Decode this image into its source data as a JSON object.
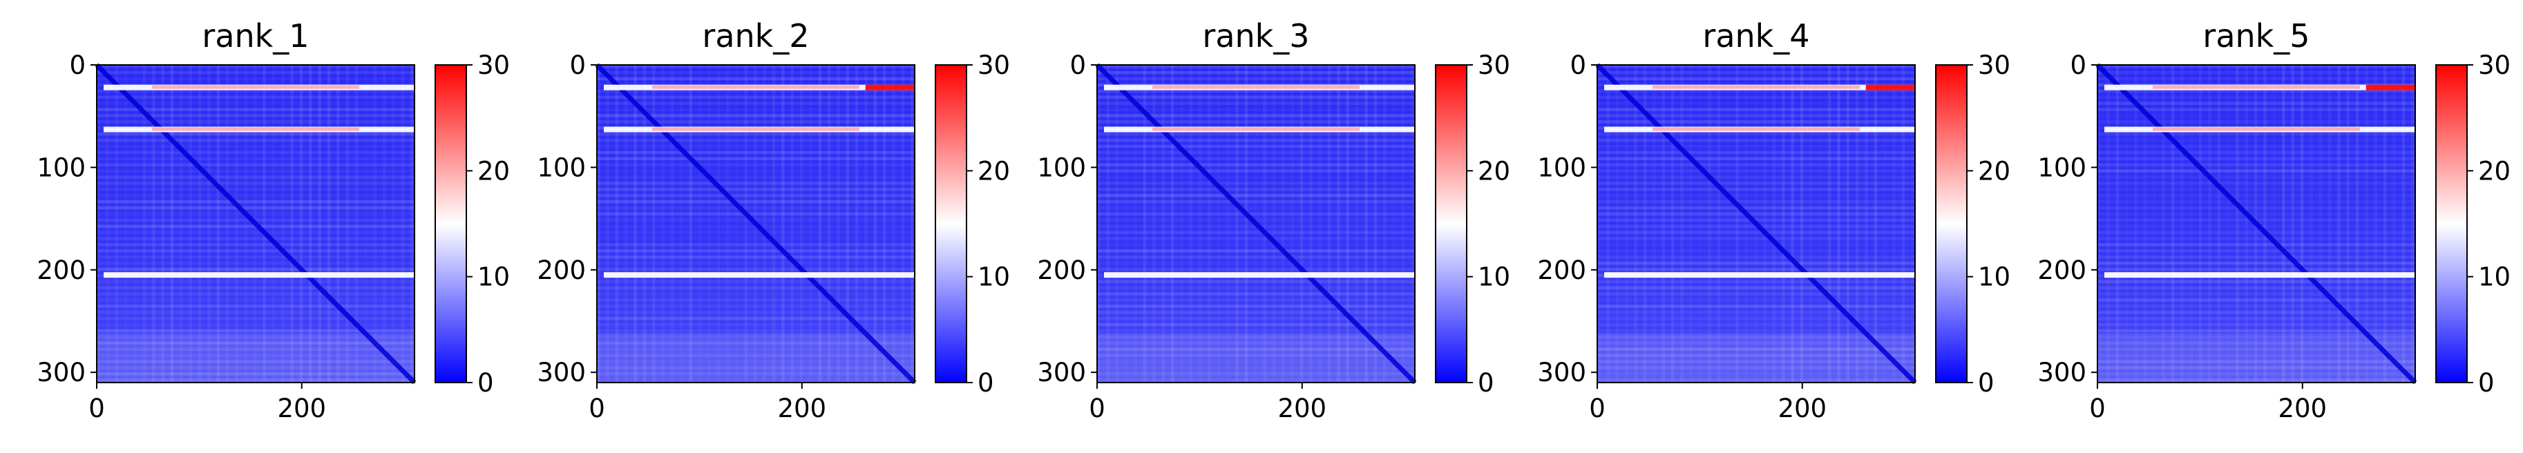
{
  "figure": {
    "background": "#ffffff"
  },
  "chart_data": [
    {
      "type": "heatmap",
      "title": "rank_1",
      "xlabel": "",
      "ylabel": "",
      "xlim": [
        0,
        310
      ],
      "ylim": [
        310,
        0
      ],
      "x_ticks": [
        "0",
        "200"
      ],
      "y_ticks": [
        "0",
        "100",
        "200",
        "300"
      ],
      "colorbar": {
        "ticks": [
          "0",
          "10",
          "20",
          "30"
        ],
        "range": [
          0,
          30
        ],
        "colormap": "bwr"
      },
      "colors": {
        "low": "#0000ff",
        "mid": "#ffffff",
        "high": "#ff0000"
      },
      "bright_rows": [
        22,
        63,
        205
      ],
      "dark_diagonal": true,
      "red_segment_end": false
    },
    {
      "type": "heatmap",
      "title": "rank_2",
      "xlabel": "",
      "ylabel": "",
      "xlim": [
        0,
        310
      ],
      "ylim": [
        310,
        0
      ],
      "x_ticks": [
        "0",
        "200"
      ],
      "y_ticks": [
        "0",
        "100",
        "200",
        "300"
      ],
      "colorbar": {
        "ticks": [
          "0",
          "10",
          "20",
          "30"
        ],
        "range": [
          0,
          30
        ],
        "colormap": "bwr"
      },
      "colors": {
        "low": "#0000ff",
        "mid": "#ffffff",
        "high": "#ff0000"
      },
      "bright_rows": [
        22,
        63,
        205
      ],
      "dark_diagonal": true,
      "red_segment_end": true
    },
    {
      "type": "heatmap",
      "title": "rank_3",
      "xlabel": "",
      "ylabel": "",
      "xlim": [
        0,
        310
      ],
      "ylim": [
        310,
        0
      ],
      "x_ticks": [
        "0",
        "200"
      ],
      "y_ticks": [
        "0",
        "100",
        "200",
        "300"
      ],
      "colorbar": {
        "ticks": [
          "0",
          "10",
          "20",
          "30"
        ],
        "range": [
          0,
          30
        ],
        "colormap": "bwr"
      },
      "colors": {
        "low": "#0000ff",
        "mid": "#ffffff",
        "high": "#ff0000"
      },
      "bright_rows": [
        22,
        63,
        205
      ],
      "dark_diagonal": true,
      "red_segment_end": false
    },
    {
      "type": "heatmap",
      "title": "rank_4",
      "xlabel": "",
      "ylabel": "",
      "xlim": [
        0,
        310
      ],
      "ylim": [
        310,
        0
      ],
      "x_ticks": [
        "0",
        "200"
      ],
      "y_ticks": [
        "0",
        "100",
        "200",
        "300"
      ],
      "colorbar": {
        "ticks": [
          "0",
          "10",
          "20",
          "30"
        ],
        "range": [
          0,
          30
        ],
        "colormap": "bwr"
      },
      "colors": {
        "low": "#0000ff",
        "mid": "#ffffff",
        "high": "#ff0000"
      },
      "bright_rows": [
        22,
        63,
        205
      ],
      "dark_diagonal": true,
      "red_segment_end": true
    },
    {
      "type": "heatmap",
      "title": "rank_5",
      "xlabel": "",
      "ylabel": "",
      "xlim": [
        0,
        310
      ],
      "ylim": [
        310,
        0
      ],
      "x_ticks": [
        "0",
        "200"
      ],
      "y_ticks": [
        "0",
        "100",
        "200",
        "300"
      ],
      "colorbar": {
        "ticks": [
          "0",
          "10",
          "20",
          "30"
        ],
        "range": [
          0,
          30
        ],
        "colormap": "bwr"
      },
      "colors": {
        "low": "#0000ff",
        "mid": "#ffffff",
        "high": "#ff0000"
      },
      "bright_rows": [
        22,
        63,
        205
      ],
      "dark_diagonal": true,
      "red_segment_end": true
    }
  ]
}
